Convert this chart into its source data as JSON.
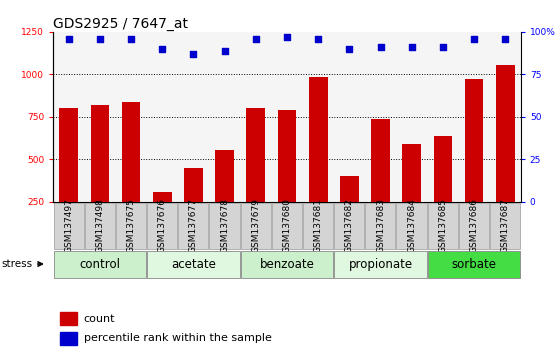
{
  "title": "GDS2925 / 7647_at",
  "samples": [
    "GSM137497",
    "GSM137498",
    "GSM137675",
    "GSM137676",
    "GSM137677",
    "GSM137678",
    "GSM137679",
    "GSM137680",
    "GSM137681",
    "GSM137682",
    "GSM137683",
    "GSM137684",
    "GSM137685",
    "GSM137686",
    "GSM137687"
  ],
  "counts": [
    800,
    820,
    840,
    310,
    450,
    555,
    800,
    790,
    985,
    400,
    740,
    590,
    635,
    975,
    1055
  ],
  "percentiles": [
    96,
    96,
    96,
    90,
    87,
    89,
    96,
    97,
    96,
    90,
    91,
    91,
    91,
    96,
    96
  ],
  "groups": [
    {
      "label": "control",
      "start": 0,
      "end": 3,
      "color": "#ccf0cc"
    },
    {
      "label": "acetate",
      "start": 3,
      "end": 6,
      "color": "#e0f8e0"
    },
    {
      "label": "benzoate",
      "start": 6,
      "end": 9,
      "color": "#ccf0cc"
    },
    {
      "label": "propionate",
      "start": 9,
      "end": 12,
      "color": "#e0f8e0"
    },
    {
      "label": "sorbate",
      "start": 12,
      "end": 15,
      "color": "#44dd44"
    }
  ],
  "bar_color": "#cc0000",
  "dot_color": "#0000cc",
  "ylim_left": [
    250,
    1250
  ],
  "yticks_left": [
    250,
    500,
    750,
    1000,
    1250
  ],
  "ylim_right": [
    0,
    100
  ],
  "yticks_right": [
    0,
    25,
    50,
    75,
    100
  ],
  "bar_width": 0.6,
  "background_color": "#ffffff",
  "stress_label": "stress",
  "legend_count_label": "count",
  "legend_pct_label": "percentile rank within the sample",
  "title_fontsize": 10,
  "tick_fontsize": 6.5,
  "group_label_fontsize": 8.5,
  "legend_fontsize": 8
}
